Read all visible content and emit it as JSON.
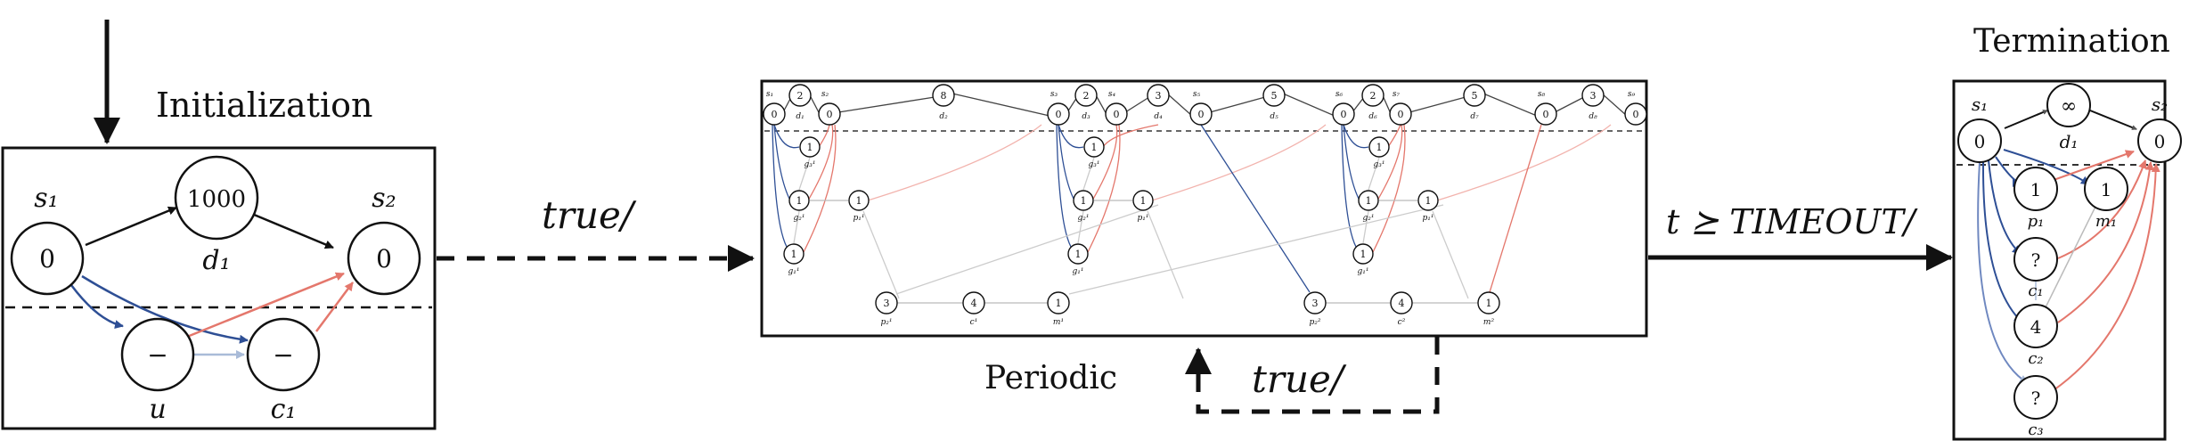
{
  "titles": {
    "initialization": "Initialization",
    "periodic": "Periodic",
    "termination": "Termination"
  },
  "transitions": {
    "init_to_periodic": "true/",
    "periodic_loop": "true/",
    "periodic_to_termination": "t ⪰ TIMEOUT/"
  },
  "init_panel": {
    "nodes": {
      "s1": {
        "label": "s₁",
        "value": "0"
      },
      "d1": {
        "label": "d₁",
        "value": "1000"
      },
      "s2": {
        "label": "s₂",
        "value": "0"
      },
      "u": {
        "label": "u",
        "value": "−"
      },
      "c1": {
        "label": "c₁",
        "value": "−"
      }
    }
  },
  "periodic_panel": {
    "top_labels": [
      "s₁",
      "d₁",
      "s₂",
      "d₂",
      "s₃",
      "d₃",
      "s₄",
      "d₄",
      "s₅",
      "d₅",
      "s₆",
      "d₆",
      "s₇",
      "d₇",
      "s₈",
      "d₈",
      "s₉"
    ],
    "top_values": [
      "0",
      "2",
      "0",
      "8",
      "0",
      "2",
      "0",
      "3",
      "0",
      "5",
      "0",
      "2",
      "0",
      "5",
      "0",
      "3",
      "0"
    ],
    "bottom_labels": [
      "p₂¹",
      "c¹",
      "m¹",
      "p₂²",
      "c²",
      "m²"
    ],
    "bottom_values": [
      "3",
      "4",
      "1",
      "3",
      "4",
      "1"
    ],
    "inner_value": "1",
    "inner_labels": [
      "g₃¹",
      "g₂¹",
      "p₁¹",
      "g₁¹"
    ]
  },
  "term_panel": {
    "nodes": {
      "s1": {
        "label": "s₁",
        "value": "0"
      },
      "d1": {
        "label": "d₁",
        "value": "∞"
      },
      "s2": {
        "label": "s₂",
        "value": "0"
      },
      "p1": {
        "label": "p₁",
        "value": "1"
      },
      "m1": {
        "label": "m₁",
        "value": "1"
      },
      "c1": {
        "label": "c₁",
        "value": "?"
      },
      "c2": {
        "label": "c₂",
        "value": "4"
      },
      "c3": {
        "label": "c₃",
        "value": "?"
      }
    }
  },
  "colors": {
    "blue": "#2e4f95",
    "light_blue": "#a9bbd8",
    "red": "#e4776c",
    "light_red": "#f2b3ad",
    "gray": "#b8b8b8",
    "ink": "#111111"
  }
}
